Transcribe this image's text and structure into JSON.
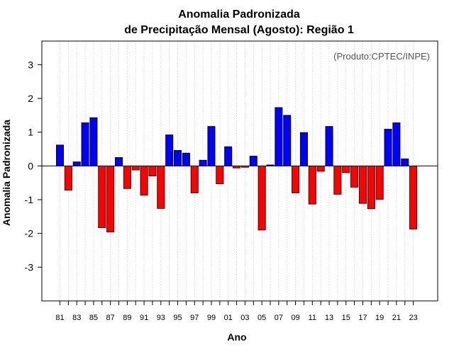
{
  "chart_data": {
    "type": "bar",
    "title_line1": "Anomalia Padronizada",
    "title_line2": "de Precipitação Mensal (Agosto): Região 1",
    "xlabel": "Ano",
    "ylabel": "Anomalia Padronizada",
    "credit": "(Produto:CPTEC/INPE)",
    "ylim": [
      -4,
      3.7
    ],
    "y_ticks": [
      -3,
      -2,
      -1,
      0,
      1,
      2,
      3
    ],
    "x_tick_labels": [
      "81",
      "83",
      "85",
      "87",
      "89",
      "91",
      "93",
      "95",
      "97",
      "99",
      "01",
      "03",
      "05",
      "07",
      "09",
      "11",
      "13",
      "15",
      "17",
      "19",
      "21",
      "23"
    ],
    "categories": [
      "1981",
      "1982",
      "1983",
      "1984",
      "1985",
      "1986",
      "1987",
      "1988",
      "1989",
      "1990",
      "1991",
      "1992",
      "1993",
      "1994",
      "1995",
      "1996",
      "1997",
      "1998",
      "1999",
      "2000",
      "2001",
      "2002",
      "2003",
      "2004",
      "2005",
      "2006",
      "2007",
      "2008",
      "2009",
      "2010",
      "2011",
      "2012",
      "2013",
      "2014",
      "2015",
      "2016",
      "2017",
      "2018",
      "2019",
      "2020",
      "2021",
      "2022",
      "2023"
    ],
    "values": [
      0.62,
      -0.72,
      0.12,
      1.28,
      1.43,
      -1.83,
      -1.96,
      0.25,
      -0.67,
      -0.12,
      -0.87,
      -0.3,
      -1.26,
      0.92,
      0.46,
      0.38,
      -0.8,
      0.17,
      1.17,
      -0.53,
      0.57,
      -0.06,
      -0.04,
      0.29,
      -1.9,
      0.03,
      1.73,
      1.5,
      -0.8,
      0.99,
      -1.13,
      -0.16,
      1.17,
      -0.84,
      -0.2,
      -0.63,
      -1.11,
      -1.27,
      -0.99,
      1.09,
      1.28,
      0.21,
      -1.87
    ],
    "positive_color": "#0000ff",
    "negative_color": "#ff0000",
    "grid": "vertical dotted"
  }
}
